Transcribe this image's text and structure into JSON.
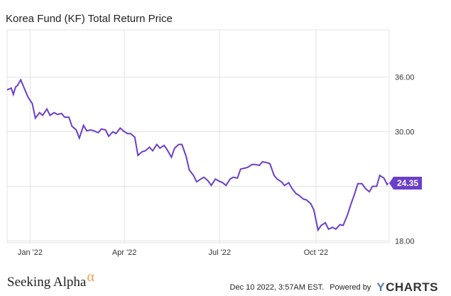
{
  "title": "Korea Fund (KF) Total Return Price",
  "footer": {
    "brand": "Seeking Alpha",
    "brand_mark": "α",
    "timestamp": "Dec 10 2022, 3:57AM EST.",
    "powered_by": "Powered by",
    "ycharts_y": "Y",
    "ycharts_rest": "CHARTS"
  },
  "colors": {
    "line": "#6a3fc9",
    "grid": "#e3e3e3",
    "label_bg": "#6a3fc9"
  },
  "chart_data": {
    "type": "line",
    "title": "Korea Fund (KF) Total Return Price",
    "x_ticks": [
      {
        "label": "Jan '22",
        "date": "2022-01-01"
      },
      {
        "label": "Apr '22",
        "date": "2022-04-01"
      },
      {
        "label": "Jul '22",
        "date": "2022-07-01"
      },
      {
        "label": "Oct '22",
        "date": "2022-10-01"
      }
    ],
    "y_ticks": [
      36,
      30,
      24,
      18
    ],
    "y_tick_labels": [
      "36.00",
      "30.00",
      "",
      "18.00"
    ],
    "ylim": [
      17.8,
      41.2
    ],
    "xlim": [
      "2021-12-10",
      "2022-12-10"
    ],
    "grid": true,
    "last_value_label": "24.35",
    "series": [
      {
        "x": [
          "2021-12-10",
          "2021-12-14",
          "2021-12-16",
          "2021-12-18",
          "2021-12-20",
          "2021-12-23",
          "2021-12-27",
          "2021-12-30",
          "2022-01-03",
          "2022-01-06",
          "2022-01-10",
          "2022-01-13",
          "2022-01-17",
          "2022-01-20",
          "2022-01-24",
          "2022-01-27",
          "2022-01-31",
          "2022-02-03",
          "2022-02-07",
          "2022-02-10",
          "2022-02-14",
          "2022-02-17",
          "2022-02-21",
          "2022-02-24",
          "2022-02-28",
          "2022-03-03",
          "2022-03-07",
          "2022-03-10",
          "2022-03-14",
          "2022-03-17",
          "2022-03-21",
          "2022-03-24",
          "2022-03-28",
          "2022-03-31",
          "2022-04-04",
          "2022-04-07",
          "2022-04-11",
          "2022-04-14",
          "2022-04-18",
          "2022-04-21",
          "2022-04-25",
          "2022-04-28",
          "2022-05-02",
          "2022-05-05",
          "2022-05-09",
          "2022-05-12",
          "2022-05-16",
          "2022-05-19",
          "2022-05-23",
          "2022-05-26",
          "2022-05-30",
          "2022-06-02",
          "2022-06-06",
          "2022-06-09",
          "2022-06-13",
          "2022-06-16",
          "2022-06-20",
          "2022-06-23",
          "2022-06-27",
          "2022-06-30",
          "2022-07-04",
          "2022-07-07",
          "2022-07-11",
          "2022-07-14",
          "2022-07-18",
          "2022-07-21",
          "2022-07-25",
          "2022-07-28",
          "2022-08-01",
          "2022-08-04",
          "2022-08-08",
          "2022-08-11",
          "2022-08-15",
          "2022-08-18",
          "2022-08-22",
          "2022-08-25",
          "2022-08-29",
          "2022-09-01",
          "2022-09-05",
          "2022-09-08",
          "2022-09-12",
          "2022-09-15",
          "2022-09-19",
          "2022-09-22",
          "2022-09-26",
          "2022-09-29",
          "2022-10-03",
          "2022-10-06",
          "2022-10-10",
          "2022-10-13",
          "2022-10-17",
          "2022-10-20",
          "2022-10-24",
          "2022-10-27",
          "2022-10-31",
          "2022-11-03",
          "2022-11-07",
          "2022-11-10",
          "2022-11-14",
          "2022-11-17",
          "2022-11-21",
          "2022-11-24",
          "2022-11-28",
          "2022-12-01",
          "2022-12-05",
          "2022-12-08",
          "2022-12-09"
        ],
        "y": [
          34.6,
          34.8,
          34.1,
          34.9,
          35.1,
          35.7,
          34.6,
          33.8,
          33.1,
          31.5,
          32.1,
          31.8,
          32.5,
          31.8,
          32.1,
          31.9,
          32.0,
          31.6,
          31.6,
          30.6,
          30.2,
          29.3,
          30.7,
          30.1,
          30.2,
          30.1,
          29.9,
          30.3,
          30.2,
          29.5,
          30.0,
          29.8,
          30.4,
          30.1,
          29.8,
          29.8,
          29.4,
          27.4,
          27.8,
          27.9,
          28.3,
          27.9,
          28.6,
          28.2,
          28.5,
          28.0,
          27.2,
          28.2,
          28.6,
          28.6,
          27.3,
          25.8,
          25.2,
          24.5,
          24.8,
          25.0,
          24.6,
          24.1,
          24.8,
          24.6,
          24.4,
          24.1,
          24.8,
          25.0,
          24.9,
          25.9,
          26.0,
          26.1,
          26.4,
          26.4,
          26.3,
          26.7,
          26.6,
          26.5,
          25.2,
          24.8,
          24.5,
          24.1,
          24.4,
          23.8,
          23.2,
          23.0,
          22.6,
          22.5,
          22.1,
          21.4,
          19.2,
          19.7,
          20.0,
          19.3,
          19.5,
          19.3,
          19.8,
          19.7,
          20.8,
          21.9,
          23.2,
          24.3,
          24.3,
          23.8,
          23.4,
          24.0,
          24.0,
          25.2,
          24.9,
          24.2,
          24.35
        ]
      }
    ]
  }
}
